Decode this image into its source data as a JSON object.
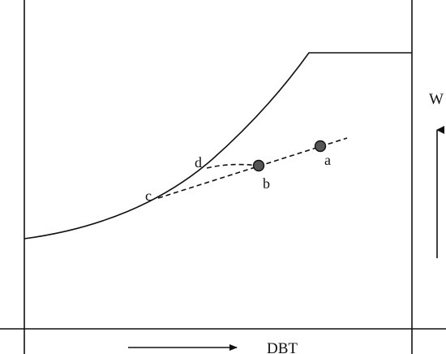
{
  "diagram": {
    "x_axis_label": "DBT",
    "y_axis_label": "W",
    "points": [
      {
        "id": "a",
        "label": "a"
      },
      {
        "id": "b",
        "label": "b"
      },
      {
        "id": "c",
        "label": "c"
      },
      {
        "id": "d",
        "label": "d"
      }
    ],
    "colors": {
      "line": "#111111",
      "state_point_fill": "#555555",
      "background": "#ffffff"
    }
  }
}
